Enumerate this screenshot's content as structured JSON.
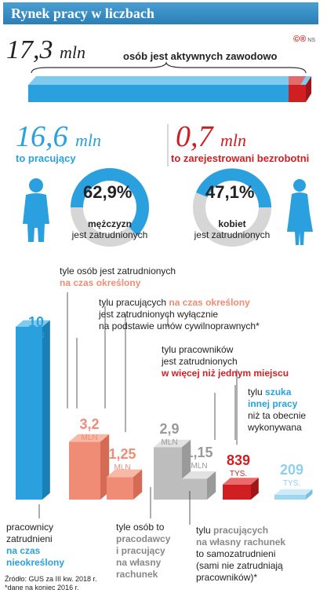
{
  "header": {
    "title": "Rynek pracy w liczbach"
  },
  "badge": {
    "logo": "©®",
    "initials": "NS"
  },
  "total": {
    "value": "17,3",
    "unit": "mln",
    "desc": "osób jest aktywnych zawodowo"
  },
  "employed": {
    "value": "16,6",
    "unit": "mln",
    "label": "to pracujący"
  },
  "unemployed": {
    "value": "0,7",
    "unit": "mln",
    "label": "to zarejestrowani bezrobotni"
  },
  "men": {
    "pct": "62,9%",
    "who": "mężczyzn",
    "rest": "jest zatrudnionych"
  },
  "women": {
    "pct": "47,1%",
    "who": "kobiet",
    "rest": "jest zatrudnionych"
  },
  "annotations": {
    "fixed_term_a": "tyle osób jest zatrudnionych",
    "fixed_term_b": "na czas określony",
    "civil_1a": "tylu pracujących ",
    "civil_1b": "na czas określony",
    "civil_2": "jest zatrudnionych wyłącznie",
    "civil_3": "na podstawie umów cywilnoprawnych*",
    "multi_1": "tylu pracowników",
    "multi_2": "jest zatrudnionych",
    "multi_3": "w więcej niż jednym miejscu",
    "seek_1a": "tylu ",
    "seek_1b": "szuka",
    "seek_2": "innej pracy",
    "seek_3": "niż ta obecnie",
    "seek_4": "wykonywana",
    "perm_1": "pracownicy",
    "perm_2": "zatrudnieni",
    "perm_3": "na czas",
    "perm_4": "nieokreślony",
    "empl_1": "tyle osób to",
    "empl_2": "pracodawcy",
    "empl_3": "i pracujący",
    "empl_4": "na własny",
    "empl_5": "rachunek",
    "self_1": "tylu ",
    "self_1b": "pracujących",
    "self_2": "na własny rachunek",
    "self_3": "to samozatrudnieni",
    "self_4": "(sami nie zatrudniają",
    "self_5": "pracowników)*"
  },
  "source": {
    "line1": "Źródło: GUS za III kw. 2018 r.",
    "line2": "*dane na koniec 2016 r."
  },
  "chart_data": {
    "type": "bar",
    "categories": [
      "na czas nieokreślony",
      "na czas określony",
      "umowy cywilnoprawne",
      "pracodawcy i pracujący na własny rachunek",
      "samozatrudnieni",
      "w więcej niż jednym miejscu",
      "szuka innej pracy"
    ],
    "values": [
      10,
      3.2,
      1.25,
      2.9,
      1.15,
      0.839,
      0.209
    ],
    "labels": [
      {
        "num": "10",
        "unit": "MLN"
      },
      {
        "num": "3,2",
        "unit": "MLN"
      },
      {
        "num": "1,25",
        "unit": "MLN"
      },
      {
        "num": "2,9",
        "unit": "MLN"
      },
      {
        "num": "1,15",
        "unit": "MLN"
      },
      {
        "num": "839",
        "unit": "TYS."
      },
      {
        "num": "209",
        "unit": "TYS."
      }
    ],
    "colors": {
      "blue": "#2aa1de",
      "salmon": "#f08c76",
      "grey": "#bdbdbd",
      "red": "#d01f22",
      "lightblue": "#9fd6f0"
    }
  }
}
